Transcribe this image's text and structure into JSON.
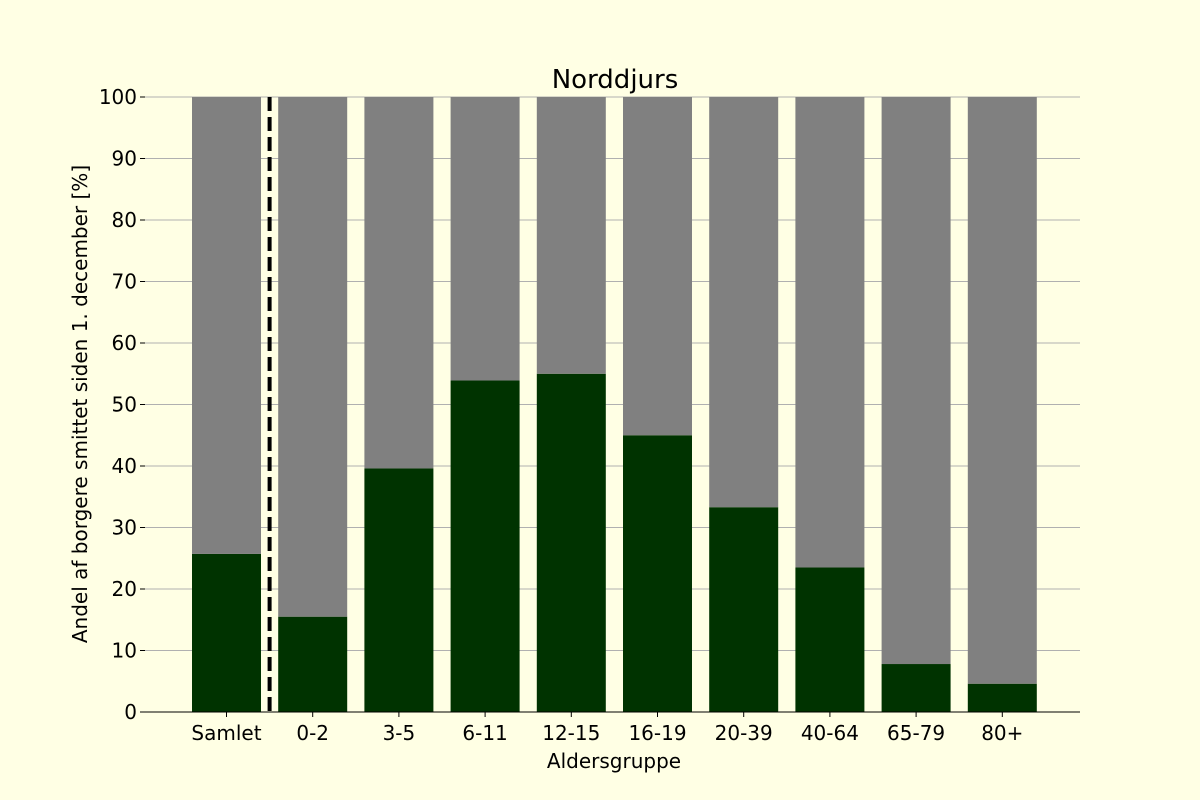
{
  "chart_data": {
    "type": "bar",
    "stacked": true,
    "title": "Norddjurs",
    "xlabel": "Aldersgruppe",
    "ylabel": "Andel af borgere smittet siden 1. december [%]",
    "ylim": [
      0,
      100
    ],
    "yticks": [
      0,
      10,
      20,
      30,
      40,
      50,
      60,
      70,
      80,
      90,
      100
    ],
    "grid": "horizontal",
    "categories": [
      "Samlet",
      "0-2",
      "3-5",
      "6-11",
      "12-15",
      "16-19",
      "20-39",
      "40-64",
      "65-79",
      "80+"
    ],
    "series": [
      {
        "values": [
          25.7,
          15.5,
          39.6,
          53.9,
          55.0,
          45.0,
          33.3,
          23.5,
          7.8,
          4.6
        ],
        "color": "#003300"
      },
      {
        "values": [
          74.3,
          84.5,
          60.4,
          46.1,
          45.0,
          55.0,
          66.7,
          76.5,
          92.2,
          95.4
        ],
        "color": "#808080"
      }
    ],
    "separator_after_index": 0,
    "background": "#ffffe4"
  }
}
